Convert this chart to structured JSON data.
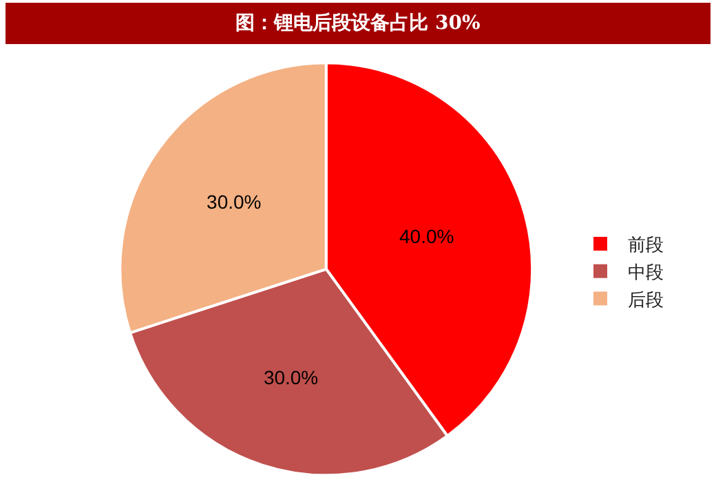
{
  "chart_data": {
    "type": "pie",
    "title": "图：锂电后段设备占比 30%",
    "categories": [
      "前段",
      "中段",
      "后段"
    ],
    "values": [
      40,
      30,
      30
    ],
    "colors": [
      "#fe0000",
      "#c0504d",
      "#f4b183"
    ],
    "value_labels": [
      "40.0%",
      "30.0%",
      "30.0%"
    ],
    "legend": "right"
  }
}
